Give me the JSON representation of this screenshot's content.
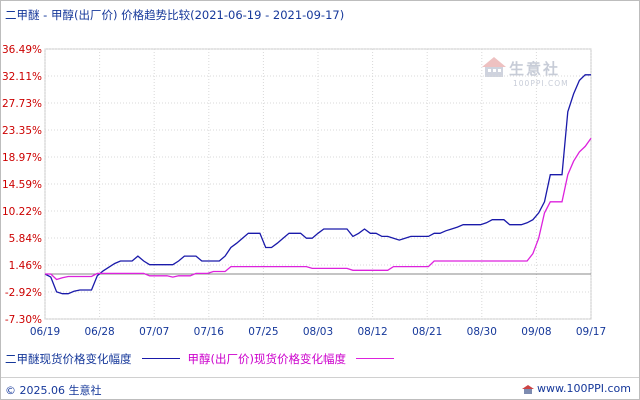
{
  "header": {
    "title": "二甲醚 - 甲醇(出厂价) 价格趋势比较",
    "date_range": "(2021-06-19 - 2021-09-17)"
  },
  "watermark": {
    "text": "生意社",
    "url": "100PPI.COM"
  },
  "footer": {
    "copyright": "© 2025.06 生意社",
    "site": "www.100PPI.com"
  },
  "colors": {
    "series1": "#1a1aaa",
    "series2": "#dd22dd",
    "ytick": "#cc0000",
    "xtick": "#16389a",
    "grid": "#d8d8d8",
    "zero": "#888888"
  },
  "chart_data": {
    "type": "line",
    "x_tick_labels": [
      "06/19",
      "06/28",
      "07/07",
      "07/16",
      "07/25",
      "08/03",
      "08/12",
      "08/21",
      "08/30",
      "09/08",
      "09/17"
    ],
    "y_tick_labels": [
      "36.49%",
      "32.11%",
      "27.73%",
      "23.35%",
      "18.97%",
      "14.59%",
      "10.22%",
      "5.84%",
      "1.46%",
      "-2.92%",
      "-7.30%"
    ],
    "ylim": [
      -7.3,
      36.49
    ],
    "grid": true,
    "legend_position": "bottom",
    "series": [
      {
        "name": "二甲醚现货价格变化幅度",
        "points": [
          [
            0,
            0
          ],
          [
            1,
            -0.5
          ],
          [
            2,
            -2.9
          ],
          [
            3,
            -3.2
          ],
          [
            4,
            -3.2
          ],
          [
            5,
            -2.8
          ],
          [
            6,
            -2.6
          ],
          [
            7,
            -2.6
          ],
          [
            8,
            -2.6
          ],
          [
            9,
            -0.3
          ],
          [
            10,
            0.5
          ],
          [
            11,
            1.1
          ],
          [
            12,
            1.7
          ],
          [
            13,
            2.1
          ],
          [
            14,
            2.1
          ],
          [
            15,
            2.1
          ],
          [
            16,
            2.9
          ],
          [
            17,
            2.1
          ],
          [
            18,
            1.5
          ],
          [
            19,
            1.5
          ],
          [
            20,
            1.5
          ],
          [
            21,
            1.5
          ],
          [
            22,
            1.5
          ],
          [
            23,
            2.1
          ],
          [
            24,
            2.9
          ],
          [
            25,
            2.9
          ],
          [
            26,
            2.9
          ],
          [
            27,
            2.1
          ],
          [
            28,
            2.1
          ],
          [
            29,
            2.1
          ],
          [
            30,
            2.1
          ],
          [
            31,
            2.9
          ],
          [
            32,
            4.3
          ],
          [
            33,
            5.0
          ],
          [
            34,
            5.8
          ],
          [
            35,
            6.6
          ],
          [
            36,
            6.6
          ],
          [
            37,
            6.6
          ],
          [
            38,
            4.3
          ],
          [
            39,
            4.3
          ],
          [
            40,
            5.0
          ],
          [
            41,
            5.8
          ],
          [
            42,
            6.6
          ],
          [
            43,
            6.6
          ],
          [
            44,
            6.6
          ],
          [
            45,
            5.8
          ],
          [
            46,
            5.8
          ],
          [
            47,
            6.6
          ],
          [
            48,
            7.3
          ],
          [
            49,
            7.3
          ],
          [
            50,
            7.3
          ],
          [
            51,
            7.3
          ],
          [
            52,
            7.3
          ],
          [
            53,
            6.1
          ],
          [
            54,
            6.6
          ],
          [
            55,
            7.3
          ],
          [
            56,
            6.6
          ],
          [
            57,
            6.6
          ],
          [
            58,
            6.1
          ],
          [
            59,
            6.1
          ],
          [
            60,
            5.8
          ],
          [
            61,
            5.5
          ],
          [
            62,
            5.8
          ],
          [
            63,
            6.1
          ],
          [
            64,
            6.1
          ],
          [
            65,
            6.1
          ],
          [
            66,
            6.1
          ],
          [
            67,
            6.6
          ],
          [
            68,
            6.6
          ],
          [
            69,
            7.0
          ],
          [
            70,
            7.3
          ],
          [
            71,
            7.6
          ],
          [
            72,
            8.0
          ],
          [
            73,
            8.0
          ],
          [
            74,
            8.0
          ],
          [
            75,
            8.0
          ],
          [
            76,
            8.3
          ],
          [
            77,
            8.8
          ],
          [
            78,
            8.8
          ],
          [
            79,
            8.8
          ],
          [
            80,
            8.0
          ],
          [
            81,
            8.0
          ],
          [
            82,
            8.0
          ],
          [
            83,
            8.3
          ],
          [
            84,
            8.8
          ],
          [
            85,
            9.9
          ],
          [
            86,
            11.7
          ],
          [
            87,
            16.1
          ],
          [
            88,
            16.1
          ],
          [
            89,
            16.1
          ],
          [
            90,
            26.3
          ],
          [
            91,
            29.2
          ],
          [
            92,
            31.4
          ],
          [
            93,
            32.3
          ],
          [
            94,
            32.3
          ]
        ]
      },
      {
        "name": "甲醇(出厂价)现货价格变化幅度",
        "points": [
          [
            0,
            0
          ],
          [
            1,
            0
          ],
          [
            2,
            -0.9
          ],
          [
            3,
            -0.6
          ],
          [
            4,
            -0.4
          ],
          [
            5,
            -0.4
          ],
          [
            6,
            -0.4
          ],
          [
            7,
            -0.4
          ],
          [
            8,
            -0.4
          ],
          [
            9,
            0.1
          ],
          [
            10,
            0.1
          ],
          [
            11,
            0.1
          ],
          [
            12,
            0.1
          ],
          [
            13,
            0.1
          ],
          [
            14,
            0.1
          ],
          [
            15,
            0.1
          ],
          [
            16,
            0.1
          ],
          [
            17,
            0.1
          ],
          [
            18,
            -0.3
          ],
          [
            19,
            -0.3
          ],
          [
            20,
            -0.3
          ],
          [
            21,
            -0.3
          ],
          [
            22,
            -0.5
          ],
          [
            23,
            -0.3
          ],
          [
            24,
            -0.3
          ],
          [
            25,
            -0.3
          ],
          [
            26,
            0.1
          ],
          [
            27,
            0.1
          ],
          [
            28,
            0.1
          ],
          [
            29,
            0.4
          ],
          [
            30,
            0.4
          ],
          [
            31,
            0.4
          ],
          [
            32,
            1.2
          ],
          [
            33,
            1.2
          ],
          [
            34,
            1.2
          ],
          [
            35,
            1.2
          ],
          [
            36,
            1.2
          ],
          [
            37,
            1.2
          ],
          [
            38,
            1.2
          ],
          [
            39,
            1.2
          ],
          [
            40,
            1.2
          ],
          [
            41,
            1.2
          ],
          [
            42,
            1.2
          ],
          [
            43,
            1.2
          ],
          [
            44,
            1.2
          ],
          [
            45,
            1.2
          ],
          [
            46,
            0.9
          ],
          [
            47,
            0.9
          ],
          [
            48,
            0.9
          ],
          [
            49,
            0.9
          ],
          [
            50,
            0.9
          ],
          [
            51,
            0.9
          ],
          [
            52,
            0.9
          ],
          [
            53,
            0.6
          ],
          [
            54,
            0.6
          ],
          [
            55,
            0.6
          ],
          [
            56,
            0.6
          ],
          [
            57,
            0.6
          ],
          [
            58,
            0.6
          ],
          [
            59,
            0.6
          ],
          [
            60,
            1.2
          ],
          [
            61,
            1.2
          ],
          [
            62,
            1.2
          ],
          [
            63,
            1.2
          ],
          [
            64,
            1.2
          ],
          [
            65,
            1.2
          ],
          [
            66,
            1.2
          ],
          [
            67,
            2.1
          ],
          [
            68,
            2.1
          ],
          [
            69,
            2.1
          ],
          [
            70,
            2.1
          ],
          [
            71,
            2.1
          ],
          [
            72,
            2.1
          ],
          [
            73,
            2.1
          ],
          [
            74,
            2.1
          ],
          [
            75,
            2.1
          ],
          [
            76,
            2.1
          ],
          [
            77,
            2.1
          ],
          [
            78,
            2.1
          ],
          [
            79,
            2.1
          ],
          [
            80,
            2.1
          ],
          [
            81,
            2.1
          ],
          [
            82,
            2.1
          ],
          [
            83,
            2.1
          ],
          [
            84,
            3.3
          ],
          [
            85,
            5.8
          ],
          [
            86,
            9.9
          ],
          [
            87,
            11.7
          ],
          [
            88,
            11.7
          ],
          [
            89,
            11.7
          ],
          [
            90,
            16.1
          ],
          [
            91,
            18.3
          ],
          [
            92,
            19.8
          ],
          [
            93,
            20.7
          ],
          [
            94,
            22.0
          ]
        ]
      }
    ]
  }
}
